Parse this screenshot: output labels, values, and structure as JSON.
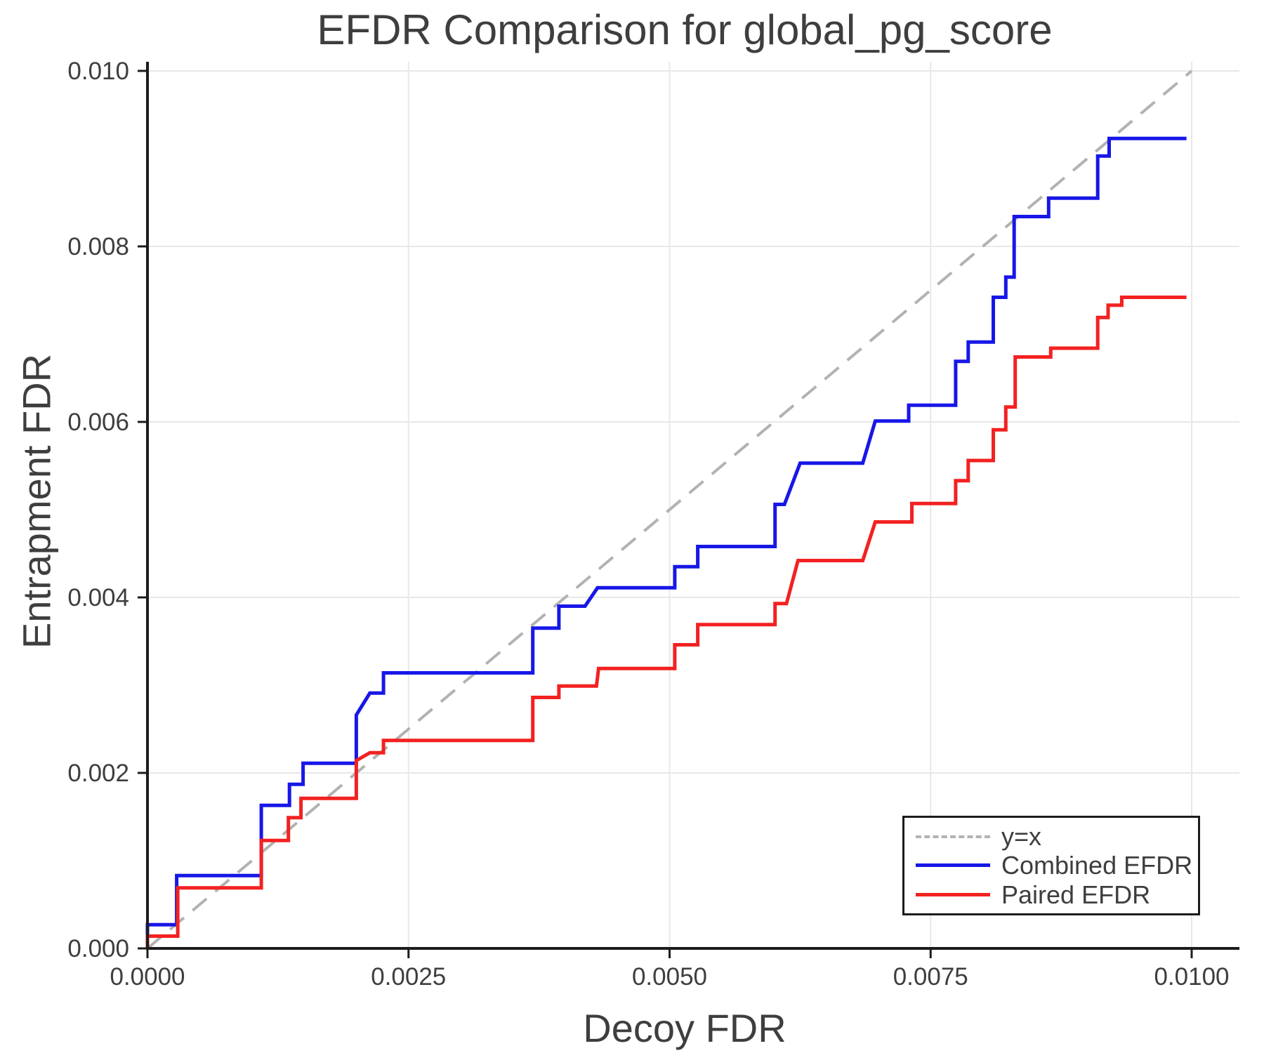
{
  "figure": {
    "title": "EFDR Comparison for global_pg_score",
    "x_label": "Decoy FDR",
    "y_label": "Entrapment FDR"
  },
  "legend": {
    "items": [
      {
        "label": "y=x"
      },
      {
        "label": "Combined EFDR"
      },
      {
        "label": "Paired EFDR"
      }
    ]
  },
  "colors": {
    "combined": "#1717e8",
    "paired": "#f32121",
    "identity_line": "#b2b2b2",
    "grid": "#e8e8e8",
    "spine": "#1c1c1c",
    "text": "#3e3e3e"
  },
  "chart_data": {
    "type": "line",
    "title": "EFDR Comparison for global_pg_score",
    "xlabel": "Decoy FDR",
    "ylabel": "Entrapment FDR",
    "xlim": [
      0,
      0.01045
    ],
    "ylim": [
      0,
      0.0101
    ],
    "grid": true,
    "legend_position": "lower right",
    "x_ticks": {
      "values": [
        0,
        0.0025,
        0.005,
        0.0075,
        0.01
      ],
      "labels": [
        "0.0000",
        "0.0025",
        "0.0050",
        "0.0075",
        "0.0100"
      ]
    },
    "y_ticks": {
      "values": [
        0,
        0.002,
        0.004,
        0.006,
        0.008,
        0.01
      ],
      "labels": [
        "0.000",
        "0.002",
        "0.004",
        "0.006",
        "0.008",
        "0.010"
      ]
    },
    "reference_line": {
      "name": "y=x",
      "style": "dashed",
      "from": [
        0,
        0
      ],
      "to": [
        0.01,
        0.01
      ]
    },
    "series": [
      {
        "name": "Combined EFDR",
        "color": "#1717e8",
        "points": [
          [
            0,
            0
          ],
          [
            0,
            0.00027
          ],
          [
            0.00028,
            0.00027
          ],
          [
            0.00028,
            0.00083
          ],
          [
            0.00109,
            0.00083
          ],
          [
            0.00109,
            0.00163
          ],
          [
            0.00136,
            0.00163
          ],
          [
            0.00136,
            0.00187
          ],
          [
            0.00149,
            0.00187
          ],
          [
            0.00149,
            0.00211
          ],
          [
            0.002,
            0.00211
          ],
          [
            0.002,
            0.00266
          ],
          [
            0.00213,
            0.00291
          ],
          [
            0.00226,
            0.00291
          ],
          [
            0.00226,
            0.00314
          ],
          [
            0.00369,
            0.00314
          ],
          [
            0.00369,
            0.00365
          ],
          [
            0.00394,
            0.00365
          ],
          [
            0.00394,
            0.0039
          ],
          [
            0.00419,
            0.0039
          ],
          [
            0.00431,
            0.00411
          ],
          [
            0.00505,
            0.00411
          ],
          [
            0.00505,
            0.00435
          ],
          [
            0.00527,
            0.00435
          ],
          [
            0.00527,
            0.00458
          ],
          [
            0.00601,
            0.00458
          ],
          [
            0.00601,
            0.00506
          ],
          [
            0.0061,
            0.00506
          ],
          [
            0.00625,
            0.00553
          ],
          [
            0.00685,
            0.00553
          ],
          [
            0.00697,
            0.00601
          ],
          [
            0.00729,
            0.00601
          ],
          [
            0.00729,
            0.00619
          ],
          [
            0.00774,
            0.00619
          ],
          [
            0.00774,
            0.00669
          ],
          [
            0.00786,
            0.00669
          ],
          [
            0.00786,
            0.00691
          ],
          [
            0.0081,
            0.00691
          ],
          [
            0.0081,
            0.00742
          ],
          [
            0.00822,
            0.00742
          ],
          [
            0.00822,
            0.00765
          ],
          [
            0.0083,
            0.00765
          ],
          [
            0.0083,
            0.00834
          ],
          [
            0.00863,
            0.00834
          ],
          [
            0.00863,
            0.00855
          ],
          [
            0.0091,
            0.00855
          ],
          [
            0.0091,
            0.00903
          ],
          [
            0.00921,
            0.00903
          ],
          [
            0.00921,
            0.00923
          ],
          [
            0.00995,
            0.00923
          ]
        ]
      },
      {
        "name": "Paired EFDR",
        "color": "#f32121",
        "points": [
          [
            0,
            0
          ],
          [
            0,
            0.00014
          ],
          [
            0.00029,
            0.00014
          ],
          [
            0.00029,
            0.00069
          ],
          [
            0.00109,
            0.00069
          ],
          [
            0.00109,
            0.00123
          ],
          [
            0.00135,
            0.00123
          ],
          [
            0.00135,
            0.00149
          ],
          [
            0.00147,
            0.00149
          ],
          [
            0.00147,
            0.00171
          ],
          [
            0.002,
            0.00171
          ],
          [
            0.002,
            0.00214
          ],
          [
            0.00213,
            0.00223
          ],
          [
            0.00226,
            0.00223
          ],
          [
            0.00226,
            0.00237
          ],
          [
            0.00369,
            0.00237
          ],
          [
            0.00369,
            0.00286
          ],
          [
            0.00394,
            0.00286
          ],
          [
            0.00394,
            0.00299
          ],
          [
            0.0043,
            0.00299
          ],
          [
            0.00432,
            0.00319
          ],
          [
            0.00505,
            0.00319
          ],
          [
            0.00505,
            0.00346
          ],
          [
            0.00527,
            0.00346
          ],
          [
            0.00527,
            0.00369
          ],
          [
            0.00601,
            0.00369
          ],
          [
            0.00601,
            0.00393
          ],
          [
            0.00612,
            0.00393
          ],
          [
            0.00623,
            0.00442
          ],
          [
            0.00685,
            0.00442
          ],
          [
            0.00697,
            0.00486
          ],
          [
            0.00732,
            0.00486
          ],
          [
            0.00732,
            0.00507
          ],
          [
            0.00774,
            0.00507
          ],
          [
            0.00774,
            0.00533
          ],
          [
            0.00786,
            0.00533
          ],
          [
            0.00786,
            0.00556
          ],
          [
            0.0081,
            0.00556
          ],
          [
            0.0081,
            0.00591
          ],
          [
            0.00822,
            0.00591
          ],
          [
            0.00822,
            0.00617
          ],
          [
            0.00831,
            0.00617
          ],
          [
            0.00831,
            0.00674
          ],
          [
            0.00865,
            0.00674
          ],
          [
            0.00865,
            0.00684
          ],
          [
            0.0091,
            0.00684
          ],
          [
            0.0091,
            0.00719
          ],
          [
            0.0092,
            0.00719
          ],
          [
            0.0092,
            0.00733
          ],
          [
            0.00933,
            0.00733
          ],
          [
            0.00933,
            0.00742
          ],
          [
            0.00995,
            0.00742
          ]
        ]
      }
    ]
  }
}
